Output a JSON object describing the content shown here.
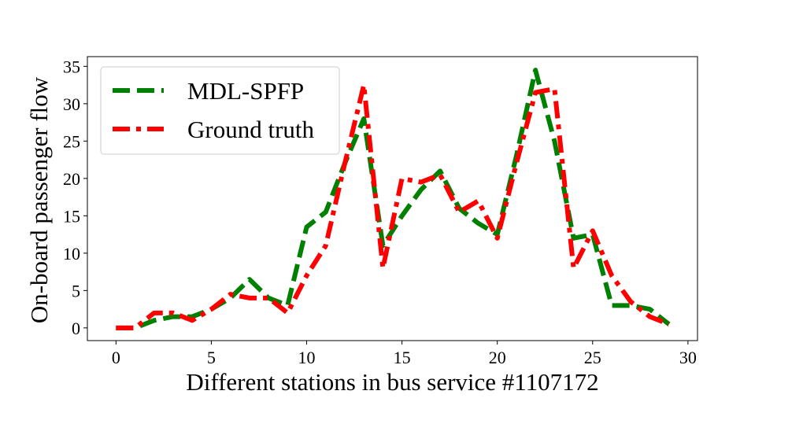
{
  "chart_data": {
    "type": "line",
    "title": "",
    "xlabel": "Different stations in bus service #1107172",
    "ylabel": "On-board passenger flow",
    "xlim": [
      -1.5,
      30.5
    ],
    "ylim": [
      -1.7,
      36.3
    ],
    "xticks": [
      0,
      5,
      10,
      15,
      20,
      25,
      30
    ],
    "yticks": [
      0,
      5,
      10,
      15,
      20,
      25,
      30,
      35
    ],
    "grid": false,
    "legend_position": "top-left",
    "x": [
      0,
      1,
      2,
      3,
      4,
      5,
      6,
      7,
      8,
      9,
      10,
      11,
      12,
      13,
      14,
      15,
      16,
      17,
      18,
      19,
      20,
      21,
      22,
      23,
      24,
      25,
      26,
      27,
      28,
      29
    ],
    "series": [
      {
        "name": "MDL-SPFP",
        "color": "#008000",
        "dash": "dashed",
        "values": [
          0,
          0,
          1,
          1.5,
          1.5,
          2.5,
          4,
          6.5,
          4,
          3,
          13.5,
          15.5,
          22,
          28,
          11,
          15,
          18.5,
          21,
          16,
          14,
          12.5,
          23,
          34.5,
          25,
          12,
          12.5,
          3,
          3,
          2.5,
          0.5
        ]
      },
      {
        "name": "Ground truth",
        "color": "#ff0000",
        "dash": "dashdot",
        "values": [
          0,
          0,
          2,
          2,
          1,
          2.5,
          4.5,
          4,
          4,
          2,
          7,
          11,
          22,
          32.5,
          8,
          20,
          19.5,
          20.5,
          15.5,
          17,
          12,
          22,
          31.5,
          32,
          8,
          13,
          7,
          3.5,
          1.5,
          0.5
        ]
      }
    ]
  }
}
